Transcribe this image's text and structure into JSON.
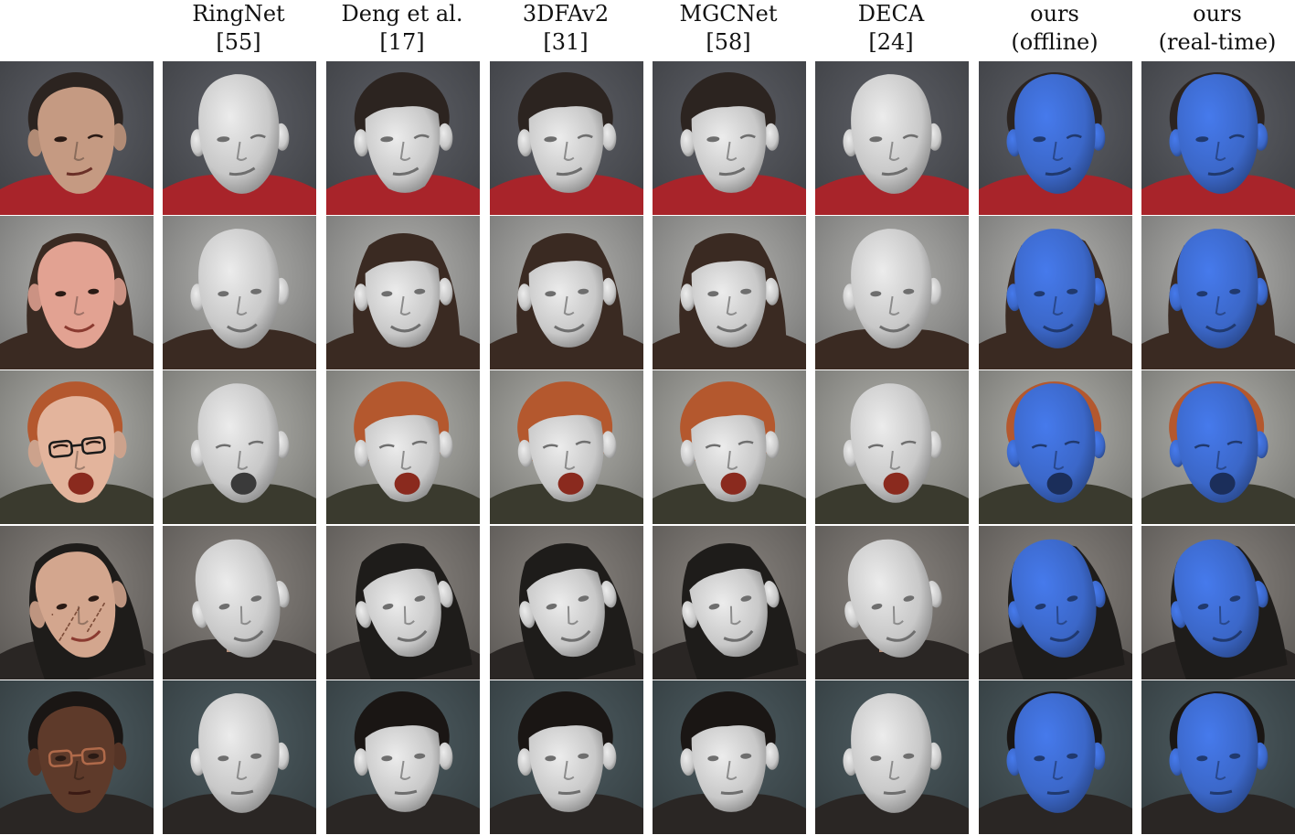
{
  "columns": [
    {
      "line1": "",
      "line2": "",
      "kind": "input"
    },
    {
      "line1": "RingNet",
      "line2": "[55]",
      "kind": "gray-full"
    },
    {
      "line1": "Deng et al.",
      "line2": "[17]",
      "kind": "gray-face"
    },
    {
      "line1": "3DFAv2",
      "line2": "[31]",
      "kind": "gray-face"
    },
    {
      "line1": "MGCNet",
      "line2": "[58]",
      "kind": "gray-face"
    },
    {
      "line1": "DECA",
      "line2": "[24]",
      "kind": "gray-full"
    },
    {
      "line1": "ours",
      "line2": "(offline)",
      "kind": "blue"
    },
    {
      "line1": "ours",
      "line2": "(real-time)",
      "kind": "blue"
    }
  ],
  "rows": [
    {
      "bg": "#4b4d52",
      "hair": "#2c2420",
      "skin": "#c59a82",
      "shirt": "#a8242a",
      "expr": "wink"
    },
    {
      "bg": "#8f8f8d",
      "hair": "#3a2a22",
      "skin": "#e2a292",
      "shirt": "#3a2a22",
      "expr": "smile"
    },
    {
      "bg": "#8e8e8a",
      "hair": "#b4582e",
      "skin": "#e3b49c",
      "shirt": "#3a3a2e",
      "expr": "yawn"
    },
    {
      "bg": "#6e6a66",
      "hair": "#1e1c1a",
      "skin": "#d3a68e",
      "shirt": "#2a2624",
      "expr": "smile"
    },
    {
      "bg": "#3e4a4e",
      "hair": "#1a1614",
      "skin": "#5e3a2a",
      "shirt": "#2a2624",
      "expr": "neutral"
    }
  ],
  "colors": {
    "gray_mesh": "#c8c8c8",
    "blue_mesh": "#3b67c8",
    "mouth": "#8a2a1e"
  }
}
